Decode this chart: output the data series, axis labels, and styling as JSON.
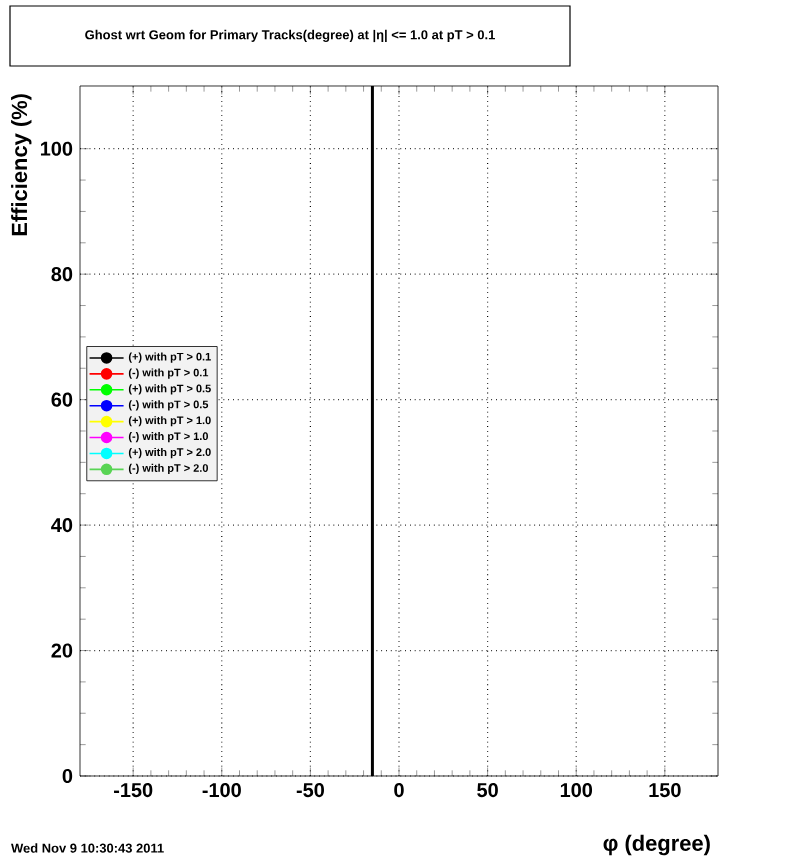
{
  "chart_data": {
    "type": "line",
    "title": "Ghost wrt Geom for Primary Tracks(degree) at |η| <= 1.0 at pT > 0.1",
    "xlabel": "φ (degree)",
    "ylabel": "Efficiency (%)",
    "annotations": [
      "Wed Nov  9 10:30:43 2011"
    ],
    "series": [
      {
        "name": "(+) with pT > 0.1",
        "color": "#000000"
      },
      {
        "name": "(-) with pT > 0.1",
        "color": "#ff0000"
      },
      {
        "name": "(+) with pT > 0.5",
        "color": "#00ff00"
      },
      {
        "name": "(-) with pT > 0.5",
        "color": "#0000ff"
      },
      {
        "name": "(+) with pT > 1.0",
        "color": "#ffff00"
      },
      {
        "name": "(-) with pT > 1.0",
        "color": "#ff00ff"
      },
      {
        "name": "(+) with pT > 2.0",
        "color": "#00ffff"
      },
      {
        "name": "(-) with pT > 2.0",
        "color": "#59d454"
      },
      {
        "x": [
          -15,
          -15
        ],
        "values": [
          0,
          110
        ],
        "color": "#000000",
        "marker": "none"
      }
    ],
    "xlim": [
      -180,
      180
    ],
    "ylim": [
      0,
      110
    ],
    "xticks": [
      -150,
      -100,
      -50,
      0,
      50,
      100,
      150
    ],
    "yticks": [
      0,
      20,
      40,
      60,
      80,
      100
    ],
    "grid": true,
    "legend": "left",
    "marker": "circle",
    "line_style": "solid"
  }
}
